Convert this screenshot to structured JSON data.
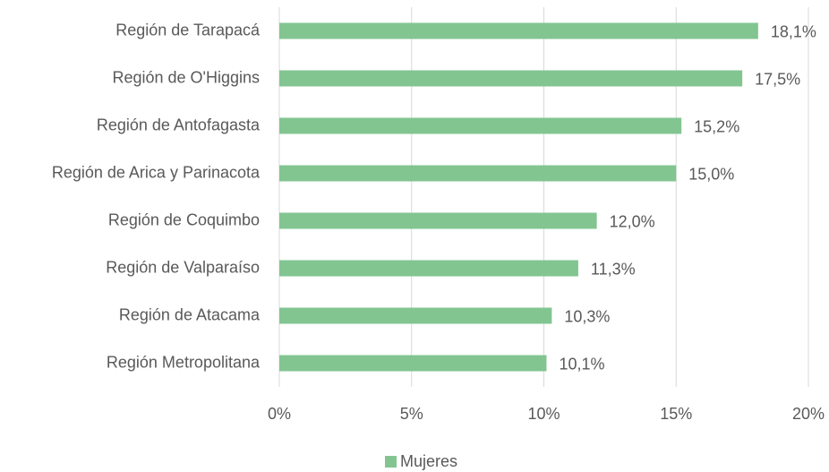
{
  "chart_data": {
    "type": "hbar",
    "categories": [
      "Región de Tarapacá",
      "Región de O'Higgins",
      "Región de Antofagasta",
      "Región de Arica y Parinacota",
      "Región de Coquimbo",
      "Región de Valparaíso",
      "Región de Atacama",
      "Región Metropolitana"
    ],
    "series": [
      {
        "name": "Mujeres",
        "color": "#82c591",
        "values": [
          18.1,
          17.5,
          15.2,
          15.0,
          12.0,
          11.3,
          10.3,
          10.1
        ],
        "value_labels": [
          "18,1%",
          "17,5%",
          "15,2%",
          "15,0%",
          "12,0%",
          "11,3%",
          "10,3%",
          "10,1%"
        ]
      }
    ],
    "xlim": [
      0,
      20
    ],
    "xticks": [
      {
        "value": 0,
        "label": "0%"
      },
      {
        "value": 5,
        "label": "5%"
      },
      {
        "value": 10,
        "label": "10%"
      },
      {
        "value": 15,
        "label": "15%"
      },
      {
        "value": 20,
        "label": "20%"
      }
    ],
    "grid": true,
    "legend": "bottom"
  }
}
